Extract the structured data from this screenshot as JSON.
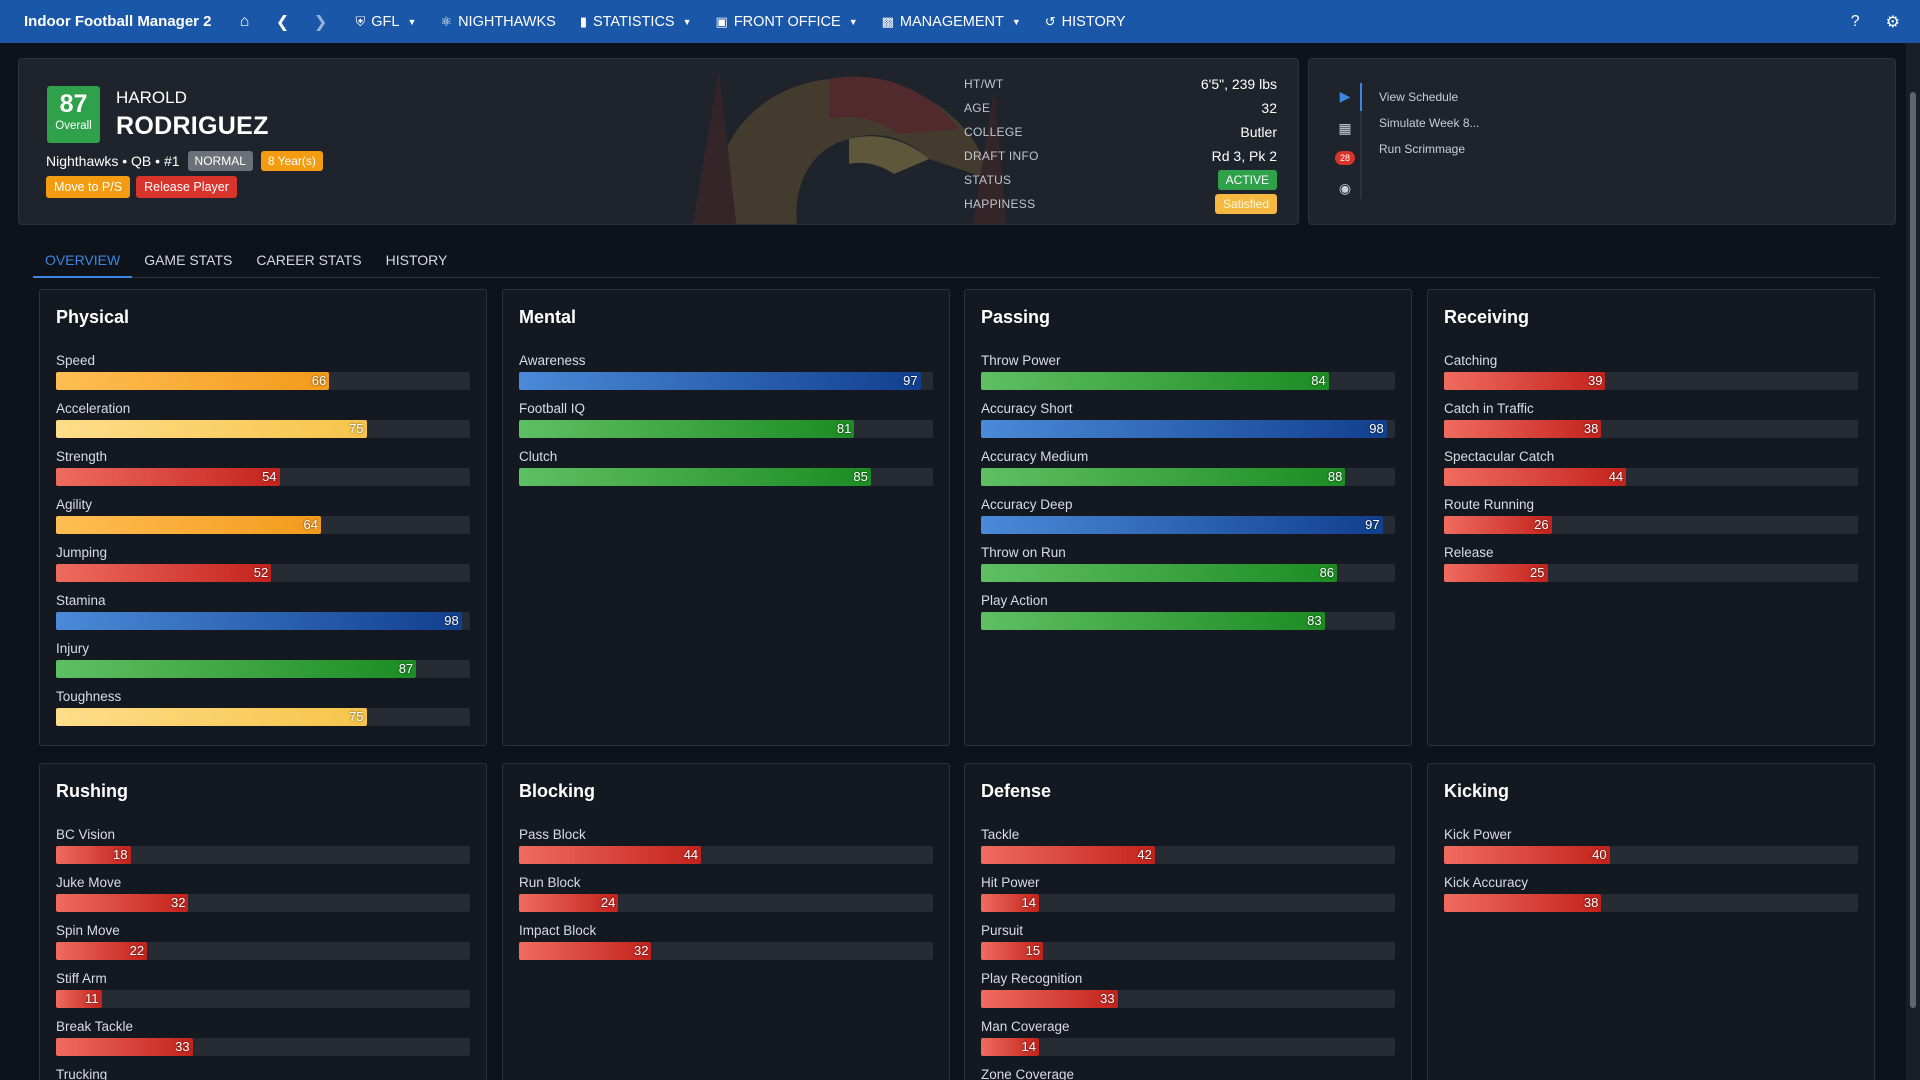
{
  "nav": {
    "brand": "Indoor Football Manager 2",
    "items": [
      {
        "icon": "shield-icon",
        "label": "GFL",
        "dropdown": true
      },
      {
        "icon": "football-icon",
        "label": "NIGHTHAWKS",
        "dropdown": false
      },
      {
        "icon": "bar-chart-icon",
        "label": "STATISTICS",
        "dropdown": true
      },
      {
        "icon": "briefcase-icon",
        "label": "FRONT OFFICE",
        "dropdown": true
      },
      {
        "icon": "clipboard-icon",
        "label": "MANAGEMENT",
        "dropdown": true
      },
      {
        "icon": "history-icon",
        "label": "HISTORY",
        "dropdown": false
      }
    ],
    "help": "?",
    "settings_icon": "gear-icon"
  },
  "player": {
    "overall": "87",
    "overall_label": "Overall",
    "first_name": "HAROLD",
    "last_name": "RODRIGUEZ",
    "team_line": "Nighthawks • QB • #1",
    "badge_mode": "NORMAL",
    "badge_contract": "8 Year(s)",
    "btn_move": "Move to P/S",
    "btn_release": "Release Player",
    "info": [
      {
        "label": "HT/WT",
        "value": "6'5\", 239 lbs",
        "style": "plain"
      },
      {
        "label": "AGE",
        "value": "32",
        "style": "plain"
      },
      {
        "label": "COLLEGE",
        "value": "Butler",
        "style": "plain"
      },
      {
        "label": "DRAFT INFO",
        "value": "Rd 3, Pk 2",
        "style": "plain"
      },
      {
        "label": "STATUS",
        "value": "ACTIVE",
        "style": "green"
      },
      {
        "label": "HAPPINESS",
        "value": "Satisfied",
        "style": "yellow"
      }
    ]
  },
  "actions": {
    "notif_count": "28",
    "items": [
      "View Schedule",
      "Simulate Week 8...",
      "Run Scrimmage"
    ]
  },
  "tabs": [
    {
      "label": "OVERVIEW",
      "active": true
    },
    {
      "label": "GAME STATS",
      "active": false
    },
    {
      "label": "CAREER STATS",
      "active": false
    },
    {
      "label": "HISTORY",
      "active": false
    }
  ],
  "colors": {
    "navbar": "#1b57a8",
    "red": "#d9342b",
    "orange": "#f39c12",
    "yellow": "#f6c449",
    "green": "#2fa14a",
    "blue": "#1f5fb8"
  },
  "panels": [
    {
      "title": "Physical",
      "attrs": [
        {
          "name": "Speed",
          "value": 66,
          "color": "orange"
        },
        {
          "name": "Acceleration",
          "value": 75,
          "color": "yellow"
        },
        {
          "name": "Strength",
          "value": 54,
          "color": "red"
        },
        {
          "name": "Agility",
          "value": 64,
          "color": "orange"
        },
        {
          "name": "Jumping",
          "value": 52,
          "color": "red"
        },
        {
          "name": "Stamina",
          "value": 98,
          "color": "blue"
        },
        {
          "name": "Injury",
          "value": 87,
          "color": "green"
        },
        {
          "name": "Toughness",
          "value": 75,
          "color": "yellow"
        }
      ]
    },
    {
      "title": "Mental",
      "attrs": [
        {
          "name": "Awareness",
          "value": 97,
          "color": "blue"
        },
        {
          "name": "Football IQ",
          "value": 81,
          "color": "green"
        },
        {
          "name": "Clutch",
          "value": 85,
          "color": "green"
        }
      ]
    },
    {
      "title": "Passing",
      "attrs": [
        {
          "name": "Throw Power",
          "value": 84,
          "color": "green"
        },
        {
          "name": "Accuracy Short",
          "value": 98,
          "color": "blue"
        },
        {
          "name": "Accuracy Medium",
          "value": 88,
          "color": "green"
        },
        {
          "name": "Accuracy Deep",
          "value": 97,
          "color": "blue"
        },
        {
          "name": "Throw on Run",
          "value": 86,
          "color": "green"
        },
        {
          "name": "Play Action",
          "value": 83,
          "color": "green"
        }
      ]
    },
    {
      "title": "Receiving",
      "attrs": [
        {
          "name": "Catching",
          "value": 39,
          "color": "red"
        },
        {
          "name": "Catch in Traffic",
          "value": 38,
          "color": "red"
        },
        {
          "name": "Spectacular Catch",
          "value": 44,
          "color": "red"
        },
        {
          "name": "Route Running",
          "value": 26,
          "color": "red"
        },
        {
          "name": "Release",
          "value": 25,
          "color": "red"
        }
      ]
    },
    {
      "title": "Rushing",
      "attrs": [
        {
          "name": "BC Vision",
          "value": 18,
          "color": "red"
        },
        {
          "name": "Juke Move",
          "value": 32,
          "color": "red"
        },
        {
          "name": "Spin Move",
          "value": 22,
          "color": "red"
        },
        {
          "name": "Stiff Arm",
          "value": 11,
          "color": "red"
        },
        {
          "name": "Break Tackle",
          "value": 33,
          "color": "red"
        },
        {
          "name": "Trucking",
          "value": null,
          "color": "red"
        }
      ]
    },
    {
      "title": "Blocking",
      "attrs": [
        {
          "name": "Pass Block",
          "value": 44,
          "color": "red"
        },
        {
          "name": "Run Block",
          "value": 24,
          "color": "red"
        },
        {
          "name": "Impact Block",
          "value": 32,
          "color": "red"
        }
      ]
    },
    {
      "title": "Defense",
      "attrs": [
        {
          "name": "Tackle",
          "value": 42,
          "color": "red"
        },
        {
          "name": "Hit Power",
          "value": 14,
          "color": "red"
        },
        {
          "name": "Pursuit",
          "value": 15,
          "color": "red"
        },
        {
          "name": "Play Recognition",
          "value": 33,
          "color": "red"
        },
        {
          "name": "Man Coverage",
          "value": 14,
          "color": "red"
        },
        {
          "name": "Zone Coverage",
          "value": null,
          "color": "red"
        }
      ]
    },
    {
      "title": "Kicking",
      "attrs": [
        {
          "name": "Kick Power",
          "value": 40,
          "color": "red"
        },
        {
          "name": "Kick Accuracy",
          "value": 38,
          "color": "red"
        }
      ]
    }
  ]
}
